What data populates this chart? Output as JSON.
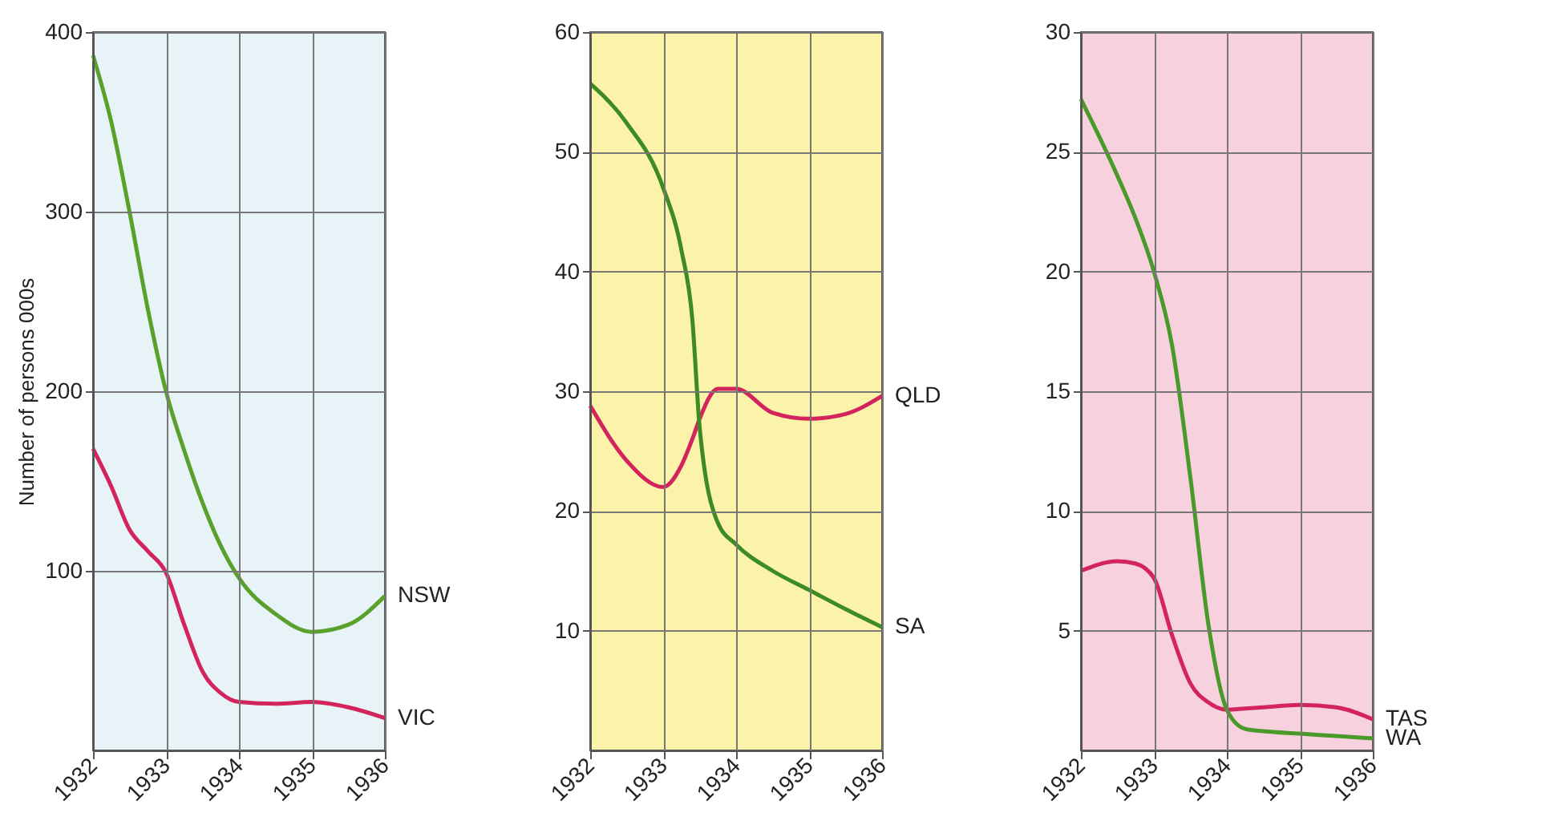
{
  "chart_data": [
    {
      "type": "line",
      "ylabel": "Number of persons 000s",
      "xlim": [
        1932,
        1936
      ],
      "xticks": [
        1932,
        1933,
        1934,
        1935,
        1936
      ],
      "ylim": [
        0,
        400
      ],
      "yticks": [
        100,
        200,
        300,
        400
      ],
      "grid": true,
      "legend": false,
      "x": [
        1932,
        1932.25,
        1932.5,
        1932.75,
        1933,
        1933.25,
        1933.5,
        1933.75,
        1934,
        1934.5,
        1935,
        1935.5,
        1936
      ],
      "series": [
        {
          "name": "NSW",
          "color": "#5aa02c",
          "values": [
            387,
            350,
            300,
            246,
            200,
            167,
            138,
            114,
            96,
            76,
            66,
            70,
            86
          ]
        },
        {
          "name": "VIC",
          "color": "#d4245e",
          "values": [
            168,
            147,
            123,
            111,
            99,
            70,
            44,
            32,
            27,
            26,
            27,
            24,
            18
          ]
        }
      ]
    },
    {
      "type": "line",
      "xlim": [
        1932,
        1936
      ],
      "xticks": [
        1932,
        1933,
        1934,
        1935,
        1936
      ],
      "ylim": [
        0,
        60
      ],
      "yticks": [
        10,
        20,
        30,
        40,
        50,
        60
      ],
      "grid": true,
      "legend": false,
      "x": [
        1932,
        1932.5,
        1933,
        1933.25,
        1933.4,
        1933.5,
        1933.75,
        1934,
        1934.5,
        1935,
        1935.5,
        1936
      ],
      "series": [
        {
          "name": "QLD",
          "color": "#d4245e",
          "values": [
            28.8,
            24.2,
            22,
            23.8,
            26,
            27.7,
            30.2,
            30.2,
            28.2,
            27.7,
            28.1,
            29.6
          ]
        },
        {
          "name": "SA",
          "color": "#3d8a26",
          "values": [
            55.7,
            52.4,
            47,
            41.8,
            36,
            27,
            19,
            17.2,
            15,
            13.4,
            11.8,
            10.3
          ]
        }
      ]
    },
    {
      "type": "line",
      "xlim": [
        1932,
        1936
      ],
      "xticks": [
        1932,
        1933,
        1934,
        1935,
        1936
      ],
      "ylim": [
        0,
        30
      ],
      "yticks": [
        5,
        10,
        15,
        20,
        25,
        30
      ],
      "grid": true,
      "legend": false,
      "x": [
        1932,
        1932.5,
        1932.75,
        1933,
        1933.25,
        1933.5,
        1933.75,
        1934,
        1934.25,
        1934.5,
        1935,
        1935.5,
        1936
      ],
      "series": [
        {
          "name": "TAS",
          "color": "#d4245e",
          "values": [
            7.5,
            7.9,
            7.8,
            7.2,
            4.8,
            2.8,
            2.0,
            1.7,
            1.75,
            1.8,
            1.9,
            1.8,
            1.3
          ]
        },
        {
          "name": "WA",
          "color": "#4a9a2a",
          "values": [
            27.2,
            24,
            22.2,
            20,
            16.9,
            11.4,
            5.2,
            1.7,
            0.9,
            0.8,
            0.7,
            0.6,
            0.5
          ]
        }
      ]
    }
  ]
}
